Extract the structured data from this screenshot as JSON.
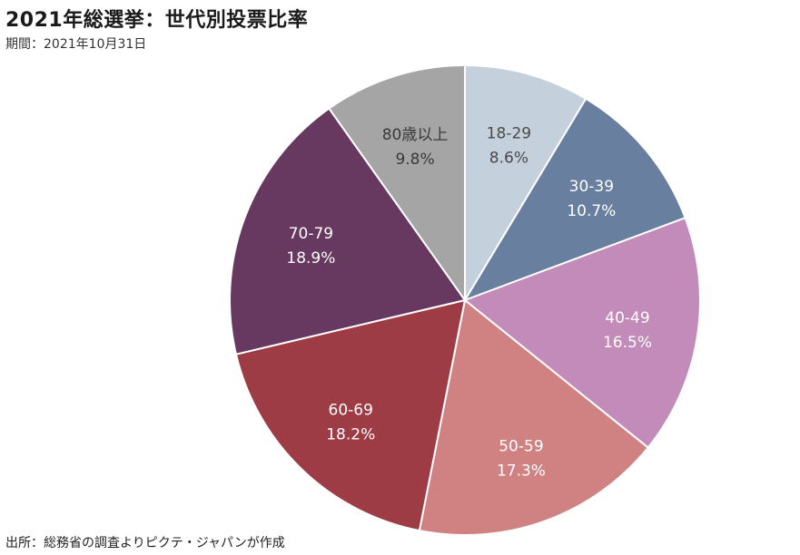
{
  "header": {
    "title": "2021年総選挙：世代別投票比率",
    "period": "期間：2021年10月31日"
  },
  "footer": {
    "source": "出所：総務省の調査よりピクテ・ジャパンが作成"
  },
  "chart_data": {
    "type": "pie",
    "title": "2021年総選挙：世代別投票比率",
    "start_angle_deg": 0,
    "direction": "clockwise",
    "slices": [
      {
        "label": "18-29",
        "value": 8.6,
        "value_label": "8.6%",
        "color": "#c5d0dd",
        "text_color": "#4a4a4a"
      },
      {
        "label": "30-39",
        "value": 10.7,
        "value_label": "10.7%",
        "color": "#687f9f",
        "text_color": "#ffffff"
      },
      {
        "label": "40-49",
        "value": 16.5,
        "value_label": "16.5%",
        "color": "#c28bb9",
        "text_color": "#ffffff"
      },
      {
        "label": "50-59",
        "value": 17.3,
        "value_label": "17.3%",
        "color": "#d08282",
        "text_color": "#ffffff"
      },
      {
        "label": "60-69",
        "value": 18.2,
        "value_label": "18.2%",
        "color": "#9e3c45",
        "text_color": "#ffffff"
      },
      {
        "label": "70-79",
        "value": 18.9,
        "value_label": "18.9%",
        "color": "#683960",
        "text_color": "#ffffff"
      },
      {
        "label": "80歳以上",
        "value": 9.8,
        "value_label": "9.8%",
        "color": "#a5a5a5",
        "text_color": "#3a3a3a"
      }
    ]
  }
}
